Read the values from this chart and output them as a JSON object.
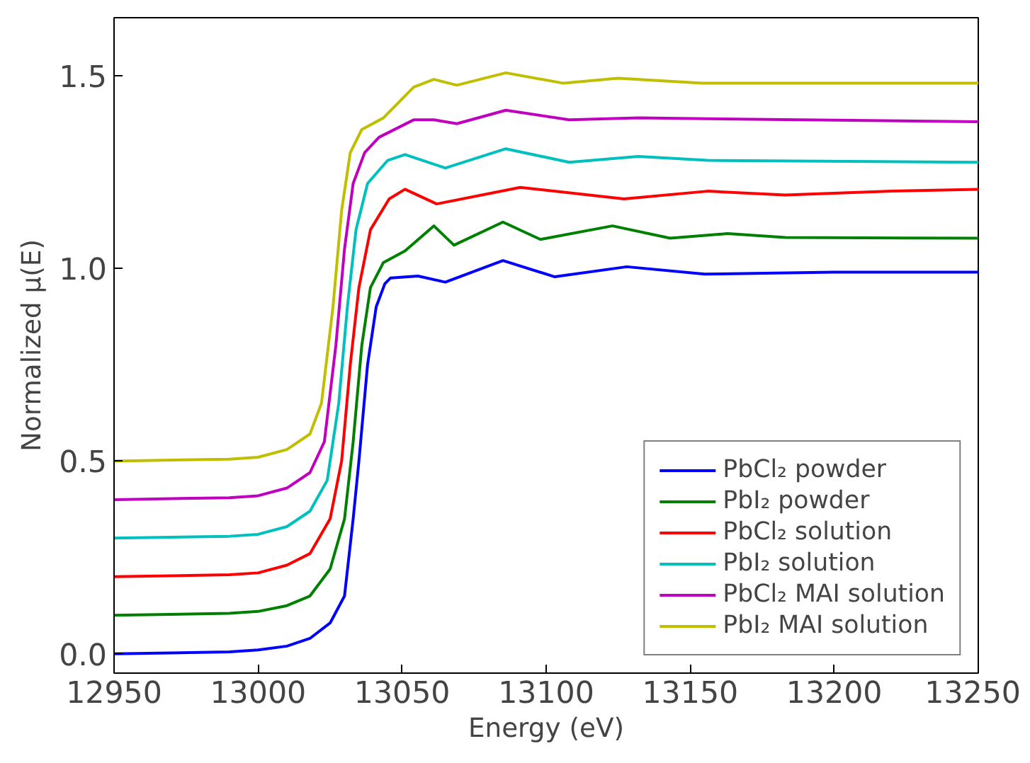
{
  "chart_data": {
    "type": "line",
    "xlabel": "Energy (eV)",
    "ylabel": "Normalized μ(E)",
    "xlim": [
      12950,
      13250
    ],
    "ylim": [
      -0.05,
      1.65
    ],
    "xticks": [
      12950,
      13000,
      13050,
      13100,
      13150,
      13200,
      13250
    ],
    "yticks": [
      {
        "value": 0,
        "label": "0.0"
      },
      {
        "value": 0.5,
        "label": "0.5"
      },
      {
        "value": 1,
        "label": "1.0"
      },
      {
        "value": 1.5,
        "label": "1.5"
      }
    ],
    "grid": false,
    "legend": "bottom right",
    "marker": "none",
    "line_style": "solid",
    "series": [
      {
        "name": "PbCl₂ powder",
        "color": "#0000ff",
        "x": [
          12950,
          12990,
          13000,
          13010,
          13018,
          13025,
          13030,
          13033,
          13035,
          13038,
          13041,
          13044,
          13046,
          13055.5,
          13065,
          13085,
          13103,
          13128,
          13155,
          13200,
          13250
        ],
        "values": [
          0,
          0.005,
          0.01,
          0.02,
          0.04,
          0.08,
          0.15,
          0.35,
          0.5,
          0.75,
          0.9,
          0.96,
          0.975,
          0.98,
          0.964,
          1.02,
          0.978,
          1.004,
          0.985,
          0.99,
          0.99
        ]
      },
      {
        "name": "PbI₂ powder",
        "color": "#008000",
        "x": [
          12950,
          12990,
          13000,
          13010,
          13018,
          13025,
          13030,
          13033,
          13036,
          13039,
          13043.5,
          13051,
          13061,
          13068,
          13085,
          13098,
          13123,
          13143,
          13163,
          13183,
          13250
        ],
        "values": [
          0.1,
          0.105,
          0.11,
          0.125,
          0.15,
          0.22,
          0.35,
          0.55,
          0.8,
          0.95,
          1.015,
          1.045,
          1.11,
          1.06,
          1.12,
          1.075,
          1.11,
          1.078,
          1.09,
          1.08,
          1.078
        ]
      },
      {
        "name": "PbCl₂ solution",
        "color": "#ff0000",
        "x": [
          12950,
          12990,
          13000,
          13010,
          13018,
          13025,
          13029,
          13032,
          13035,
          13039,
          13045.5,
          13051,
          13062,
          13091,
          13127,
          13156,
          13183,
          13220,
          13250
        ],
        "values": [
          0.2,
          0.205,
          0.21,
          0.23,
          0.26,
          0.35,
          0.5,
          0.75,
          0.95,
          1.1,
          1.18,
          1.205,
          1.167,
          1.21,
          1.18,
          1.2,
          1.19,
          1.2,
          1.205
        ]
      },
      {
        "name": "PbI₂ solution",
        "color": "#00bfbf",
        "x": [
          12950,
          12990,
          13000,
          13010,
          13018,
          13024,
          13028,
          13031,
          13034,
          13038,
          13045,
          13051,
          13065,
          13086,
          13108,
          13132,
          13156,
          13250
        ],
        "values": [
          0.3,
          0.305,
          0.31,
          0.33,
          0.37,
          0.45,
          0.65,
          0.9,
          1.1,
          1.22,
          1.28,
          1.295,
          1.26,
          1.31,
          1.275,
          1.29,
          1.28,
          1.275
        ]
      },
      {
        "name": "PbCl₂ MAI solution",
        "color": "#bf00bf",
        "x": [
          12950,
          12990,
          13000,
          13010,
          13018,
          13023,
          13027,
          13030,
          13033,
          13037,
          13042,
          13054,
          13061,
          13069,
          13086,
          13108,
          13132,
          13250
        ],
        "values": [
          0.4,
          0.405,
          0.41,
          0.43,
          0.47,
          0.55,
          0.8,
          1.05,
          1.22,
          1.3,
          1.34,
          1.385,
          1.385,
          1.375,
          1.41,
          1.385,
          1.39,
          1.38
        ]
      },
      {
        "name": "PbI₂ MAI solution",
        "color": "#bfbf00",
        "x": [
          12950,
          12990,
          13000,
          13010,
          13018,
          13022,
          13026,
          13029,
          13032,
          13036,
          13043.5,
          13054,
          13061,
          13069,
          13086,
          13106,
          13125,
          13154,
          13250
        ],
        "values": [
          0.5,
          0.505,
          0.51,
          0.53,
          0.57,
          0.65,
          0.9,
          1.15,
          1.3,
          1.36,
          1.39,
          1.47,
          1.49,
          1.475,
          1.507,
          1.48,
          1.493,
          1.48,
          1.48
        ]
      }
    ]
  }
}
